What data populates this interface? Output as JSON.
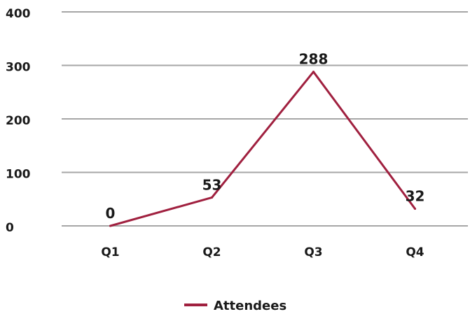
{
  "chart_data": {
    "type": "line",
    "title": "",
    "xlabel": "",
    "ylabel": "",
    "categories": [
      "Q1",
      "Q2",
      "Q3",
      "Q4"
    ],
    "series": [
      {
        "name": "Attendees",
        "values": [
          0,
          53,
          288,
          32
        ],
        "data_labels": [
          "0",
          "53",
          "288",
          "32"
        ],
        "color": "#a0203f"
      }
    ],
    "ylim": [
      0,
      400
    ],
    "yticks": [
      0,
      100,
      200,
      300,
      400
    ],
    "ytick_labels": [
      "0",
      "100",
      "200",
      "300",
      "400"
    ],
    "grid": true,
    "gridline_color": "#a6a6a6",
    "legend": {
      "position": "bottom",
      "entries": [
        "Attendees"
      ]
    }
  }
}
